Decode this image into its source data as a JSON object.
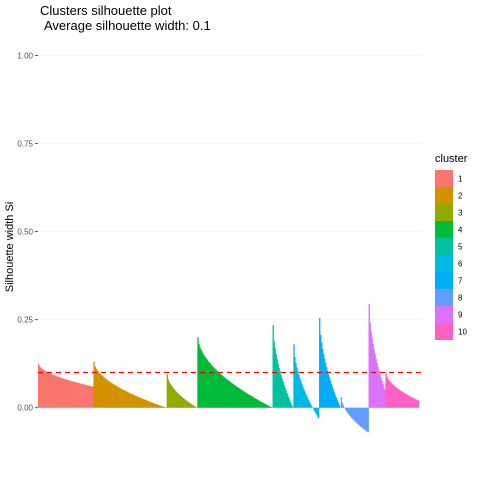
{
  "chart_data": {
    "type": "bar",
    "title": "Clusters silhouette plot",
    "subtitle": "Average silhouette width: 0.1",
    "ylabel": "Silhouette width Si",
    "xlabel": "",
    "ylim": [
      -0.14,
      1.05
    ],
    "yticks": [
      0.0,
      0.25,
      0.5,
      0.75,
      1.0
    ],
    "ytick_labels": [
      "0.00",
      "0.25",
      "0.50",
      "0.75",
      "1.00"
    ],
    "average_line": 0.1,
    "average_line_color": "#ff0000",
    "legend": {
      "title": "cluster",
      "placement": "right"
    },
    "clusters": [
      {
        "name": "1",
        "color": "#F8766D",
        "n": 56,
        "max": 0.125,
        "min": 0.06
      },
      {
        "name": "2",
        "color": "#D39200",
        "n": 74,
        "max": 0.13,
        "min": 0.0
      },
      {
        "name": "3",
        "color": "#93AA00",
        "n": 31,
        "max": 0.095,
        "min": 0.0
      },
      {
        "name": "4",
        "color": "#00BA38",
        "n": 76,
        "max": 0.2,
        "min": 0.0
      },
      {
        "name": "5",
        "color": "#00C19F",
        "n": 21,
        "max": 0.235,
        "min": 0.0
      },
      {
        "name": "6",
        "color": "#00B9E3",
        "n": 26,
        "max": 0.18,
        "min": -0.03
      },
      {
        "name": "7",
        "color": "#00ADFA",
        "n": 22,
        "max": 0.255,
        "min": 0.0
      },
      {
        "name": "8",
        "color": "#619CFF",
        "n": 28,
        "max": 0.03,
        "min": -0.07
      },
      {
        "name": "9",
        "color": "#DB72FB",
        "n": 17,
        "max": 0.295,
        "min": 0.05
      },
      {
        "name": "10",
        "color": "#FF61C3",
        "n": 34,
        "max": 0.1,
        "min": 0.02
      }
    ]
  }
}
